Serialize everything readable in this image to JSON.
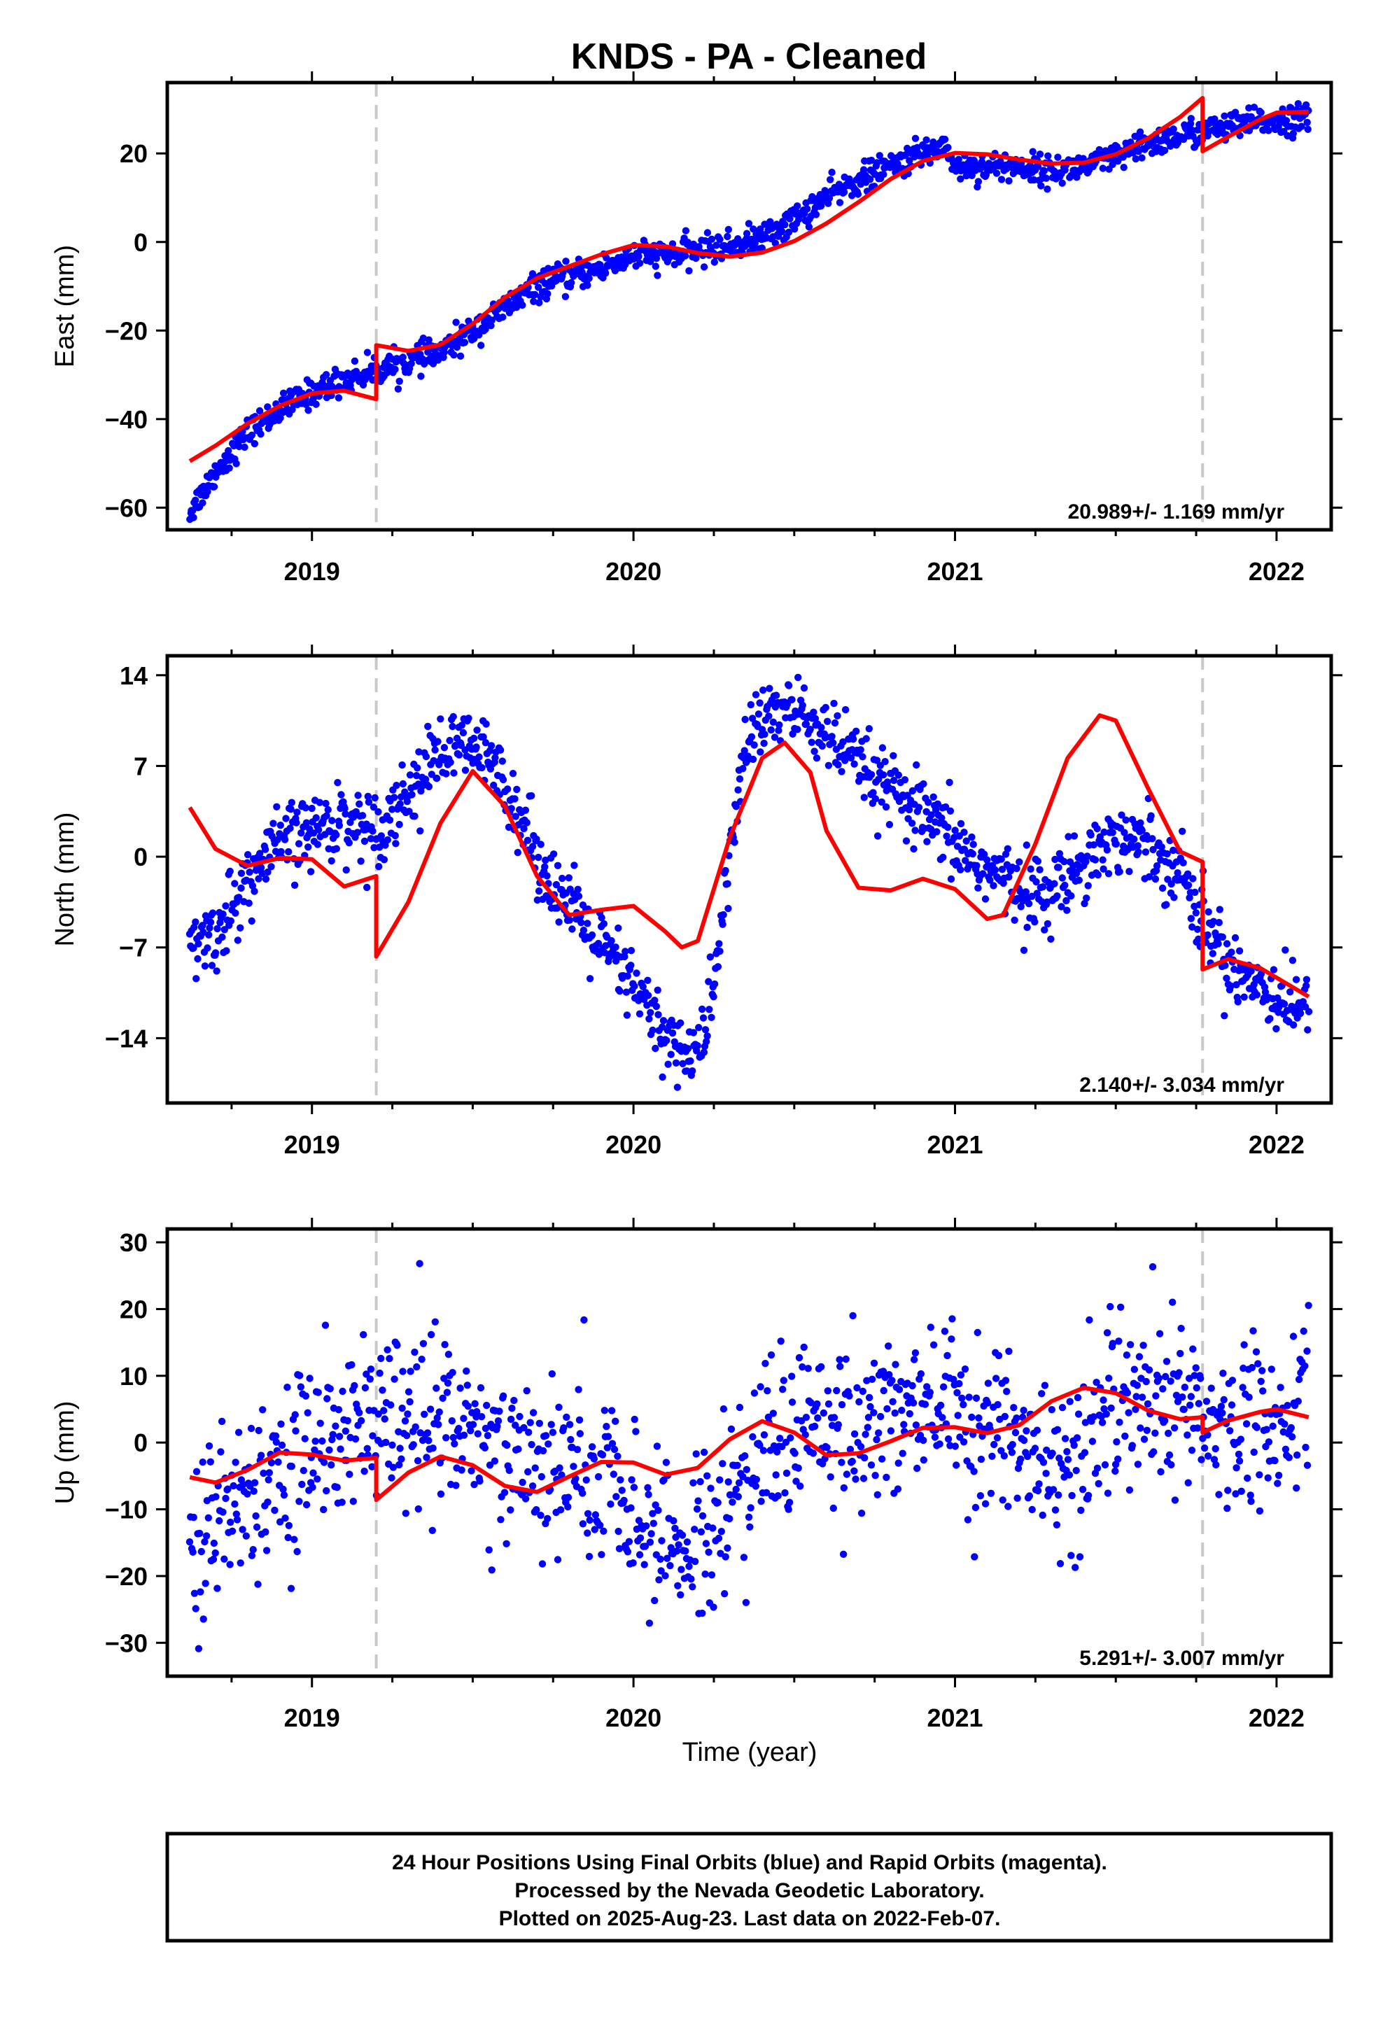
{
  "title": "KNDS  - PA - Cleaned",
  "x_axis_label": "Time (year)",
  "footer": [
    "24 Hour Positions Using Final Orbits (blue) and Rapid Orbits (magenta).",
    "Processed by the Nevada Geodetic Laboratory.",
    "Plotted on 2025-Aug-23. Last data on 2022-Feb-07."
  ],
  "colors": {
    "points": "#0000ff",
    "model": "#ff0000",
    "steps": "#c8c8c8",
    "frame": "#000000"
  },
  "chart_data": [
    {
      "type": "scatter",
      "ylabel": "East (mm)",
      "xlim": [
        2018.55,
        2022.17
      ],
      "ylim": [
        -65,
        36
      ],
      "xticks": [
        2019,
        2020,
        2021,
        2022
      ],
      "xtick_labels": [
        "2019",
        "2020",
        "2021",
        "2022"
      ],
      "yticks": [
        -60,
        -40,
        -20,
        0,
        20
      ],
      "ytick_labels": [
        "−60",
        "−40",
        "−20",
        "0",
        "20"
      ],
      "rate_label": "20.989+/- 1.169 mm/yr",
      "step_lines_x": [
        2019.2,
        2021.77
      ],
      "observed_trend": [
        [
          2018.62,
          -61
        ],
        [
          2018.7,
          -52
        ],
        [
          2018.8,
          -43
        ],
        [
          2018.9,
          -38
        ],
        [
          2019.0,
          -34
        ],
        [
          2019.1,
          -31
        ],
        [
          2019.2,
          -29
        ],
        [
          2019.3,
          -27
        ],
        [
          2019.4,
          -25
        ],
        [
          2019.5,
          -20
        ],
        [
          2019.6,
          -15
        ],
        [
          2019.7,
          -10
        ],
        [
          2019.8,
          -8
        ],
        [
          2019.9,
          -6
        ],
        [
          2020.0,
          -3
        ],
        [
          2020.1,
          -3
        ],
        [
          2020.2,
          -2
        ],
        [
          2020.3,
          -1
        ],
        [
          2020.4,
          1
        ],
        [
          2020.5,
          5
        ],
        [
          2020.6,
          10
        ],
        [
          2020.7,
          14
        ],
        [
          2020.8,
          17
        ],
        [
          2020.9,
          20
        ],
        [
          2020.97,
          22
        ],
        [
          2021.0,
          17
        ],
        [
          2021.1,
          17
        ],
        [
          2021.2,
          17
        ],
        [
          2021.3,
          16
        ],
        [
          2021.4,
          17
        ],
        [
          2021.5,
          19
        ],
        [
          2021.6,
          22
        ],
        [
          2021.7,
          24
        ],
        [
          2021.77,
          25
        ],
        [
          2021.85,
          26
        ],
        [
          2021.95,
          27
        ],
        [
          2022.1,
          28
        ]
      ],
      "observed_scatter": 1.6,
      "model_line": [
        [
          2018.62,
          -49.5
        ],
        [
          2018.7,
          -46
        ],
        [
          2018.8,
          -41
        ],
        [
          2018.9,
          -37
        ],
        [
          2019.0,
          -34.2
        ],
        [
          2019.1,
          -33.6
        ],
        [
          2019.2,
          -35.5
        ],
        [
          2019.2,
          -23.3
        ],
        [
          2019.3,
          -24.6
        ],
        [
          2019.4,
          -23.2
        ],
        [
          2019.5,
          -18.5
        ],
        [
          2019.6,
          -12.5
        ],
        [
          2019.7,
          -8.2
        ],
        [
          2019.8,
          -5.5
        ],
        [
          2019.9,
          -2.8
        ],
        [
          2020.0,
          -0.7
        ],
        [
          2020.1,
          -1.0
        ],
        [
          2020.2,
          -2.5
        ],
        [
          2020.3,
          -3.3
        ],
        [
          2020.4,
          -2.4
        ],
        [
          2020.5,
          0.2
        ],
        [
          2020.6,
          4.2
        ],
        [
          2020.7,
          9
        ],
        [
          2020.8,
          14.2
        ],
        [
          2020.9,
          18.3
        ],
        [
          2021.0,
          20.1
        ],
        [
          2021.1,
          19.8
        ],
        [
          2021.2,
          18.6
        ],
        [
          2021.3,
          17.7
        ],
        [
          2021.4,
          17.9
        ],
        [
          2021.5,
          19.8
        ],
        [
          2021.6,
          23.4
        ],
        [
          2021.7,
          28.2
        ],
        [
          2021.77,
          32.5
        ],
        [
          2021.77,
          20.5
        ],
        [
          2021.85,
          23.8
        ],
        [
          2021.95,
          27.7
        ],
        [
          2022.0,
          29.2
        ],
        [
          2022.1,
          29.4
        ]
      ]
    },
    {
      "type": "scatter",
      "ylabel": "North (mm)",
      "xlim": [
        2018.55,
        2022.17
      ],
      "ylim": [
        -19,
        15.5
      ],
      "xticks": [
        2019,
        2020,
        2021,
        2022
      ],
      "xtick_labels": [
        "2019",
        "2020",
        "2021",
        "2022"
      ],
      "yticks": [
        -14,
        -7,
        0,
        7,
        14
      ],
      "ytick_labels": [
        "−14",
        "−7",
        "0",
        "7",
        "14"
      ],
      "rate_label": "2.140+/- 3.034 mm/yr",
      "step_lines_x": [
        2019.2,
        2021.77
      ],
      "observed_trend": [
        [
          2018.62,
          -7
        ],
        [
          2018.7,
          -6
        ],
        [
          2018.8,
          -2
        ],
        [
          2018.9,
          1
        ],
        [
          2019.0,
          2
        ],
        [
          2019.1,
          3
        ],
        [
          2019.2,
          2
        ],
        [
          2019.3,
          5
        ],
        [
          2019.4,
          8
        ],
        [
          2019.5,
          8.5
        ],
        [
          2019.6,
          6
        ],
        [
          2019.7,
          0
        ],
        [
          2019.8,
          -4
        ],
        [
          2019.9,
          -7
        ],
        [
          2020.0,
          -10
        ],
        [
          2020.1,
          -14
        ],
        [
          2020.2,
          -15.5
        ],
        [
          2020.25,
          -10
        ],
        [
          2020.3,
          0
        ],
        [
          2020.35,
          9
        ],
        [
          2020.45,
          11.5
        ],
        [
          2020.55,
          10.5
        ],
        [
          2020.7,
          7
        ],
        [
          2020.8,
          5
        ],
        [
          2020.9,
          3
        ],
        [
          2021.0,
          1
        ],
        [
          2021.1,
          -1
        ],
        [
          2021.2,
          -2.5
        ],
        [
          2021.3,
          -3
        ],
        [
          2021.4,
          0
        ],
        [
          2021.5,
          1.5
        ],
        [
          2021.6,
          1
        ],
        [
          2021.7,
          -1
        ],
        [
          2021.77,
          -5
        ],
        [
          2021.85,
          -8
        ],
        [
          2021.95,
          -10
        ],
        [
          2022.1,
          -12
        ]
      ],
      "observed_scatter": 1.4,
      "model_line": [
        [
          2018.62,
          3.8
        ],
        [
          2018.7,
          0.6
        ],
        [
          2018.8,
          -0.7
        ],
        [
          2018.9,
          -0.1
        ],
        [
          2019.0,
          -0.2
        ],
        [
          2019.1,
          -2.3
        ],
        [
          2019.2,
          -1.5
        ],
        [
          2019.2,
          -7.7
        ],
        [
          2019.3,
          -3.5
        ],
        [
          2019.4,
          2.6
        ],
        [
          2019.5,
          6.6
        ],
        [
          2019.6,
          3.9
        ],
        [
          2019.7,
          -1.5
        ],
        [
          2019.8,
          -4.5
        ],
        [
          2019.9,
          -4.1
        ],
        [
          2020.0,
          -3.8
        ],
        [
          2020.1,
          -5.8
        ],
        [
          2020.15,
          -7.0
        ],
        [
          2020.2,
          -6.5
        ],
        [
          2020.3,
          1.5
        ],
        [
          2020.4,
          7.6
        ],
        [
          2020.47,
          8.8
        ],
        [
          2020.55,
          6.5
        ],
        [
          2020.6,
          2.0
        ],
        [
          2020.7,
          -2.4
        ],
        [
          2020.8,
          -2.6
        ],
        [
          2020.9,
          -1.7
        ],
        [
          2021.0,
          -2.5
        ],
        [
          2021.1,
          -4.8
        ],
        [
          2021.15,
          -4.5
        ],
        [
          2021.25,
          1.0
        ],
        [
          2021.35,
          7.6
        ],
        [
          2021.45,
          10.9
        ],
        [
          2021.5,
          10.5
        ],
        [
          2021.6,
          5.3
        ],
        [
          2021.7,
          0.4
        ],
        [
          2021.77,
          -0.4
        ],
        [
          2021.77,
          -8.7
        ],
        [
          2021.85,
          -7.9
        ],
        [
          2021.95,
          -8.6
        ],
        [
          2022.1,
          -10.8
        ]
      ]
    },
    {
      "type": "scatter",
      "ylabel": "Up (mm)",
      "xlim": [
        2018.55,
        2022.17
      ],
      "ylim": [
        -35,
        32
      ],
      "xticks": [
        2019,
        2020,
        2021,
        2022
      ],
      "xtick_labels": [
        "2019",
        "2020",
        "2021",
        "2022"
      ],
      "yticks": [
        -30,
        -20,
        -10,
        0,
        10,
        20,
        30
      ],
      "ytick_labels": [
        "−30",
        "−20",
        "−10",
        "0",
        "10",
        "20",
        "30"
      ],
      "rate_label": "5.291+/- 3.007 mm/yr",
      "step_lines_x": [
        2019.2,
        2021.77
      ],
      "observed_trend": [
        [
          2018.62,
          -14
        ],
        [
          2018.7,
          -12
        ],
        [
          2018.8,
          -7
        ],
        [
          2018.9,
          -3
        ],
        [
          2019.0,
          -1
        ],
        [
          2019.1,
          1
        ],
        [
          2019.2,
          4
        ],
        [
          2019.3,
          4
        ],
        [
          2019.4,
          3
        ],
        [
          2019.5,
          2
        ],
        [
          2019.6,
          -1
        ],
        [
          2019.7,
          -3
        ],
        [
          2019.8,
          -4
        ],
        [
          2019.9,
          -6
        ],
        [
          2020.0,
          -12
        ],
        [
          2020.1,
          -13
        ],
        [
          2020.2,
          -16
        ],
        [
          2020.3,
          -8
        ],
        [
          2020.4,
          0
        ],
        [
          2020.5,
          2
        ],
        [
          2020.6,
          3
        ],
        [
          2020.7,
          3
        ],
        [
          2020.8,
          5
        ],
        [
          2020.9,
          6
        ],
        [
          2021.0,
          5
        ],
        [
          2021.1,
          2
        ],
        [
          2021.2,
          -2
        ],
        [
          2021.3,
          -4
        ],
        [
          2021.4,
          0
        ],
        [
          2021.5,
          4
        ],
        [
          2021.6,
          5
        ],
        [
          2021.7,
          4
        ],
        [
          2021.8,
          2
        ],
        [
          2021.9,
          2
        ],
        [
          2022.0,
          5
        ],
        [
          2022.1,
          10
        ]
      ],
      "observed_scatter": 6.5,
      "model_line": [
        [
          2018.62,
          -5.2
        ],
        [
          2018.7,
          -6.0
        ],
        [
          2018.8,
          -4.1
        ],
        [
          2018.9,
          -1.5
        ],
        [
          2019.0,
          -1.8
        ],
        [
          2019.1,
          -2.7
        ],
        [
          2019.2,
          -2.3
        ],
        [
          2019.2,
          -8.6
        ],
        [
          2019.3,
          -4.5
        ],
        [
          2019.4,
          -2.1
        ],
        [
          2019.5,
          -3.4
        ],
        [
          2019.6,
          -6.5
        ],
        [
          2019.7,
          -7.4
        ],
        [
          2019.8,
          -5.1
        ],
        [
          2019.9,
          -2.9
        ],
        [
          2020.0,
          -3.0
        ],
        [
          2020.1,
          -4.8
        ],
        [
          2020.2,
          -3.8
        ],
        [
          2020.3,
          0.5
        ],
        [
          2020.4,
          3.2
        ],
        [
          2020.5,
          1.5
        ],
        [
          2020.6,
          -1.9
        ],
        [
          2020.7,
          -1.6
        ],
        [
          2020.8,
          0.2
        ],
        [
          2020.9,
          2.2
        ],
        [
          2021.0,
          2.3
        ],
        [
          2021.1,
          1.4
        ],
        [
          2021.2,
          2.6
        ],
        [
          2021.3,
          6.2
        ],
        [
          2021.4,
          8.2
        ],
        [
          2021.5,
          7.4
        ],
        [
          2021.6,
          4.8
        ],
        [
          2021.7,
          3.5
        ],
        [
          2021.77,
          3.8
        ],
        [
          2021.77,
          1.5
        ],
        [
          2021.85,
          3.3
        ],
        [
          2021.95,
          4.6
        ],
        [
          2022.0,
          5.0
        ],
        [
          2022.1,
          3.8
        ]
      ]
    }
  ]
}
